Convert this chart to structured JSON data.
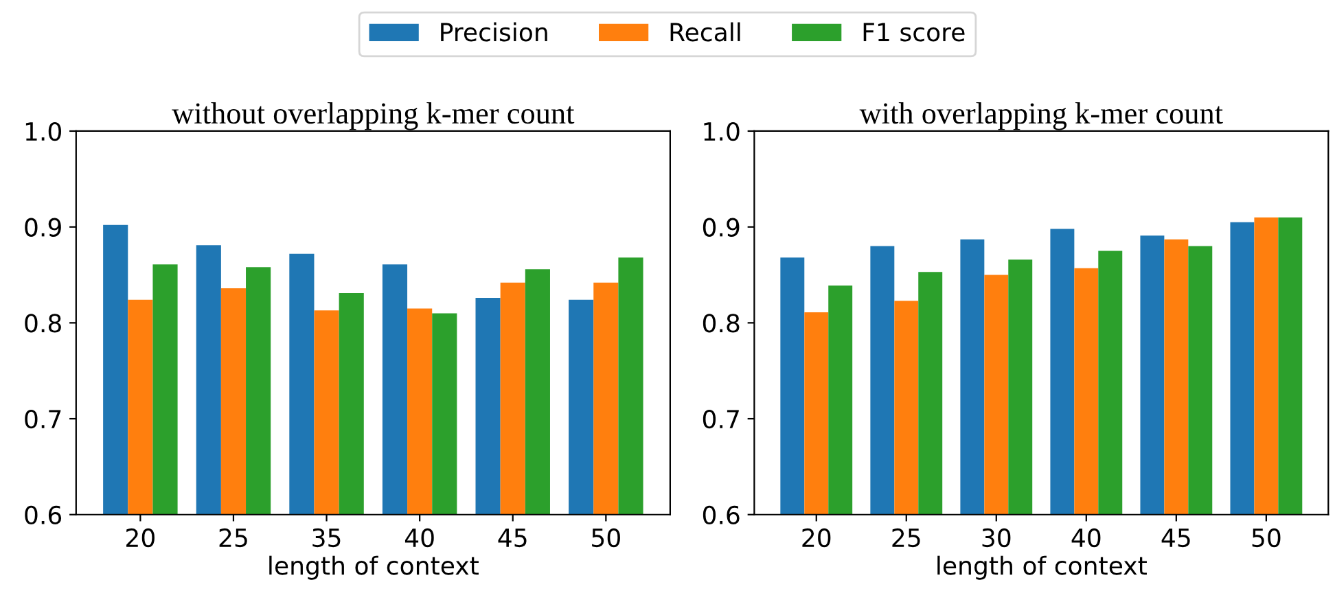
{
  "chart_data": [
    {
      "type": "bar",
      "title": "without overlapping k-mer count",
      "xlabel": "length of context",
      "categories": [
        "20",
        "25",
        "35",
        "40",
        "45",
        "50"
      ],
      "ylim": [
        0.6,
        1.0
      ],
      "yticks": [
        0.6,
        0.7,
        0.8,
        0.9,
        {
          "value": 1.0,
          "label": "1.0"
        }
      ],
      "legend": "top",
      "series": [
        {
          "name": "Precision",
          "color": "#1f77b4",
          "values": [
            0.902,
            0.881,
            0.872,
            0.861,
            0.826,
            0.824
          ]
        },
        {
          "name": "Recall",
          "color": "#ff7f0e",
          "values": [
            0.824,
            0.836,
            0.813,
            0.815,
            0.842,
            0.842
          ]
        },
        {
          "name": "F1 score",
          "color": "#2ca02c",
          "values": [
            0.861,
            0.858,
            0.831,
            0.81,
            0.856,
            0.868
          ]
        }
      ]
    },
    {
      "type": "bar",
      "title": "with overlapping k-mer count",
      "xlabel": "length of context",
      "categories": [
        "20",
        "25",
        "30",
        "40",
        "45",
        "50"
      ],
      "ylim": [
        0.6,
        1.0
      ],
      "yticks": [
        0.6,
        0.7,
        0.8,
        0.9,
        {
          "value": 1.0,
          "label": "1.0"
        }
      ],
      "series": [
        {
          "color": "#1f77b4",
          "values": [
            0.868,
            0.88,
            0.887,
            0.898,
            0.891,
            0.905
          ]
        },
        {
          "color": "#ff7f0e",
          "values": [
            0.811,
            0.823,
            0.85,
            0.857,
            0.887,
            0.91
          ]
        },
        {
          "color": "#2ca02c",
          "values": [
            0.839,
            0.853,
            0.866,
            0.875,
            0.88,
            0.91
          ]
        }
      ]
    }
  ]
}
